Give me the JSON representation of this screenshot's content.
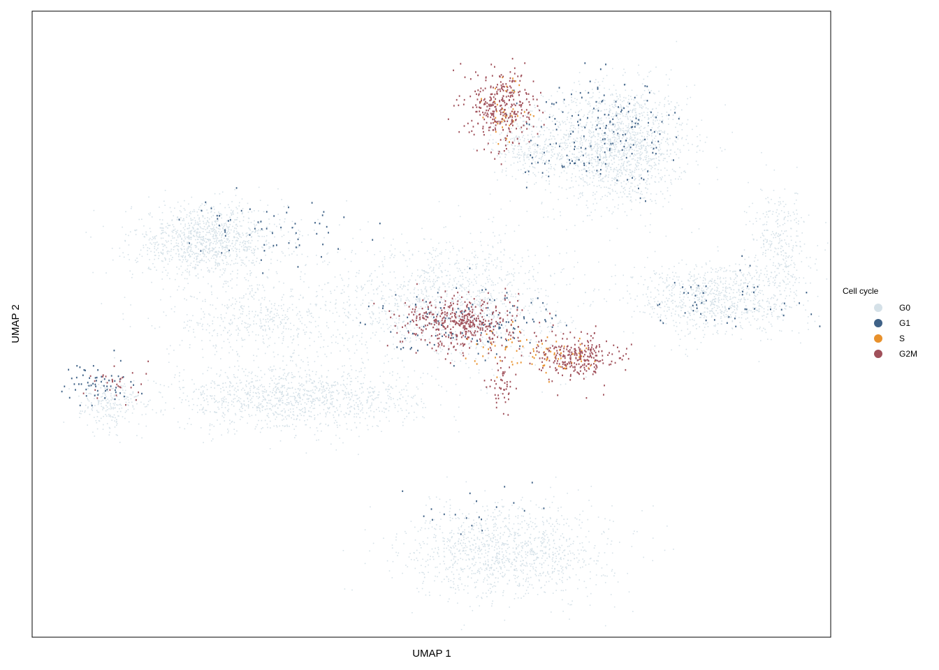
{
  "chart_data": {
    "type": "scatter",
    "title": "",
    "xlabel": "UMAP 1",
    "ylabel": "UMAP 2",
    "x_ticks": "none",
    "y_ticks": "none",
    "grid": false,
    "legend": {
      "title": "Cell cycle",
      "placement": "right",
      "entries": [
        {
          "label": "G0",
          "color": "#d5e1e8"
        },
        {
          "label": "G1",
          "color": "#3f6287"
        },
        {
          "label": "S",
          "color": "#e8912c"
        },
        {
          "label": "G2M",
          "color": "#a0505a"
        }
      ]
    },
    "series": [
      {
        "name": "G0",
        "color": "#d5e1e8",
        "clusters": [
          {
            "cx": 0.74,
            "cy": 0.8,
            "rx": 0.085,
            "ry": 0.115,
            "n": 1600
          },
          {
            "cx": 0.62,
            "cy": 0.8,
            "rx": 0.04,
            "ry": 0.06,
            "n": 250
          },
          {
            "cx": 0.21,
            "cy": 0.6,
            "rx": 0.09,
            "ry": 0.07,
            "n": 1100
          },
          {
            "cx": 0.32,
            "cy": 0.27,
            "rx": 0.15,
            "ry": 0.06,
            "n": 1200
          },
          {
            "cx": 0.52,
            "cy": 0.48,
            "rx": 0.14,
            "ry": 0.12,
            "n": 1200
          },
          {
            "cx": 0.87,
            "cy": 0.48,
            "rx": 0.1,
            "ry": 0.07,
            "n": 900
          },
          {
            "cx": 0.95,
            "cy": 0.6,
            "rx": 0.035,
            "ry": 0.1,
            "n": 300
          },
          {
            "cx": 0.6,
            "cy": -0.05,
            "rx": 0.12,
            "ry": 0.09,
            "n": 1200
          },
          {
            "cx": 0.08,
            "cy": 0.26,
            "rx": 0.035,
            "ry": 0.05,
            "n": 200
          },
          {
            "cx": 0.28,
            "cy": 0.43,
            "rx": 0.12,
            "ry": 0.07,
            "n": 500
          }
        ]
      },
      {
        "name": "G1",
        "color": "#3f6287",
        "clusters": [
          {
            "cx": 0.72,
            "cy": 0.82,
            "rx": 0.09,
            "ry": 0.1,
            "n": 170
          },
          {
            "cx": 0.55,
            "cy": 0.44,
            "rx": 0.12,
            "ry": 0.06,
            "n": 130
          },
          {
            "cx": 0.28,
            "cy": 0.62,
            "rx": 0.1,
            "ry": 0.07,
            "n": 60
          },
          {
            "cx": 0.07,
            "cy": 0.3,
            "rx": 0.04,
            "ry": 0.04,
            "n": 60
          },
          {
            "cx": 0.88,
            "cy": 0.48,
            "rx": 0.1,
            "ry": 0.07,
            "n": 50
          },
          {
            "cx": 0.55,
            "cy": 0.02,
            "rx": 0.1,
            "ry": 0.07,
            "n": 20
          }
        ]
      },
      {
        "name": "S",
        "color": "#e8912c",
        "clusters": [
          {
            "cx": 0.6,
            "cy": 0.87,
            "rx": 0.03,
            "ry": 0.06,
            "n": 40
          },
          {
            "cx": 0.66,
            "cy": 0.36,
            "rx": 0.05,
            "ry": 0.035,
            "n": 60
          },
          {
            "cx": 0.58,
            "cy": 0.38,
            "rx": 0.04,
            "ry": 0.05,
            "n": 30
          }
        ]
      },
      {
        "name": "G2M",
        "color": "#a0505a",
        "clusters": [
          {
            "cx": 0.59,
            "cy": 0.88,
            "rx": 0.04,
            "ry": 0.07,
            "n": 320
          },
          {
            "cx": 0.54,
            "cy": 0.43,
            "rx": 0.07,
            "ry": 0.05,
            "n": 420
          },
          {
            "cx": 0.69,
            "cy": 0.36,
            "rx": 0.045,
            "ry": 0.04,
            "n": 260
          },
          {
            "cx": 0.59,
            "cy": 0.3,
            "rx": 0.015,
            "ry": 0.05,
            "n": 50
          },
          {
            "cx": 0.09,
            "cy": 0.3,
            "rx": 0.035,
            "ry": 0.04,
            "n": 30
          }
        ]
      }
    ]
  }
}
